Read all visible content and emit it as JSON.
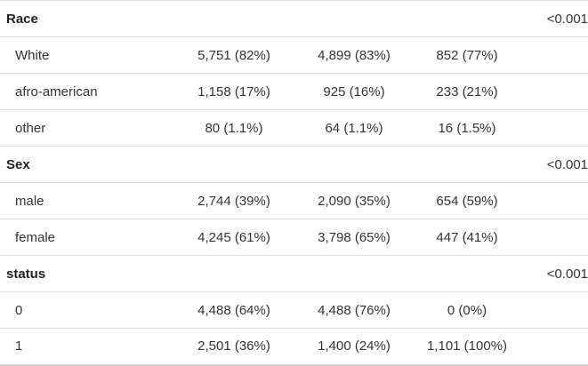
{
  "table": {
    "rows": [
      {
        "kind": "group",
        "label": "Race",
        "cells": [
          "",
          "",
          ""
        ],
        "p": "<0.001"
      },
      {
        "kind": "level",
        "label": "White",
        "cells": [
          "5,751 (82%)",
          "4,899 (83%)",
          "852 (77%)"
        ],
        "p": ""
      },
      {
        "kind": "level",
        "label": "afro-american",
        "cells": [
          "1,158 (17%)",
          "925 (16%)",
          "233 (21%)"
        ],
        "p": ""
      },
      {
        "kind": "level",
        "label": "other",
        "cells": [
          "80 (1.1%)",
          "64 (1.1%)",
          "16 (1.5%)"
        ],
        "p": ""
      },
      {
        "kind": "group",
        "label": "Sex",
        "cells": [
          "",
          "",
          ""
        ],
        "p": "<0.001"
      },
      {
        "kind": "level",
        "label": "male",
        "cells": [
          "2,744 (39%)",
          "2,090 (35%)",
          "654 (59%)"
        ],
        "p": ""
      },
      {
        "kind": "level",
        "label": "female",
        "cells": [
          "4,245 (61%)",
          "3,798 (65%)",
          "447 (41%)"
        ],
        "p": ""
      },
      {
        "kind": "group",
        "label": "status",
        "cells": [
          "",
          "",
          ""
        ],
        "p": "<0.001"
      },
      {
        "kind": "level",
        "label": "0",
        "cells": [
          "4,488 (64%)",
          "4,488 (76%)",
          "0 (0%)"
        ],
        "p": ""
      },
      {
        "kind": "level",
        "label": "1",
        "cells": [
          "2,501 (36%)",
          "1,400 (24%)",
          "1,101 (100%)"
        ],
        "p": ""
      }
    ]
  }
}
